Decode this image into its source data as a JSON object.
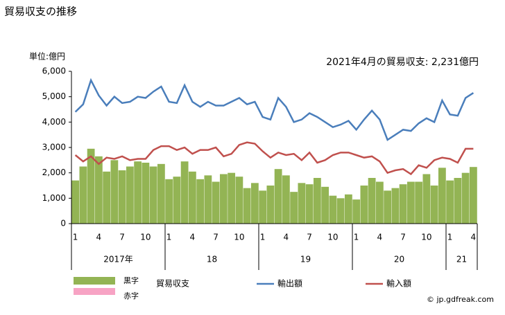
{
  "chart_data": {
    "type": "bar-line",
    "title": "貿易収支の推移",
    "unit_label": "単位:億円",
    "annotation": "2021年4月の貿易収支: 2,231億円",
    "credit": "© jp.gdfreak.com",
    "categories": [
      "1",
      null,
      null,
      "4",
      null,
      null,
      "7",
      null,
      null,
      "10",
      null,
      null,
      "1",
      null,
      null,
      "4",
      null,
      null,
      "7",
      null,
      null,
      "10",
      null,
      null,
      "1",
      null,
      null,
      "4",
      null,
      null,
      "7",
      null,
      null,
      "10",
      null,
      null,
      "1",
      null,
      null,
      "4",
      null,
      null,
      "7",
      null,
      null,
      "10",
      null,
      null,
      "1",
      null,
      null,
      "4"
    ],
    "years": [
      "2017年",
      "18",
      "19",
      "20",
      "21"
    ],
    "balance_legend": {
      "positive": "黒字",
      "negative": "赤字",
      "positive_color": "#93b454",
      "negative_color": "#f7a3c4"
    },
    "series": [
      {
        "name": "貿易収支",
        "type": "bar",
        "color": "#93b454",
        "values": [
          1700,
          2250,
          2950,
          2650,
          2050,
          2500,
          2100,
          2250,
          2450,
          2400,
          2250,
          2350,
          1750,
          1850,
          2450,
          2050,
          1750,
          1900,
          1650,
          1950,
          2000,
          1850,
          1400,
          1600,
          1300,
          1500,
          2150,
          1900,
          1250,
          1600,
          1550,
          1800,
          1450,
          1100,
          1000,
          1150,
          950,
          1500,
          1800,
          1650,
          1300,
          1400,
          1550,
          1650,
          1650,
          1950,
          1500,
          2200,
          1700,
          1800,
          2000,
          2231
        ]
      },
      {
        "name": "輸出額",
        "type": "line",
        "color": "#4a7ebb",
        "values": [
          4400,
          4700,
          5650,
          5050,
          4650,
          5000,
          4750,
          4800,
          5000,
          4950,
          5200,
          5400,
          4800,
          4750,
          5450,
          4800,
          4600,
          4800,
          4650,
          4650,
          4800,
          4950,
          4700,
          4800,
          4200,
          4100,
          4950,
          4600,
          4000,
          4100,
          4350,
          4200,
          4000,
          3800,
          3900,
          4050,
          3700,
          4100,
          4450,
          4100,
          3300,
          3500,
          3700,
          3650,
          3950,
          4150,
          4000,
          4850,
          4300,
          4250,
          4950,
          5150
        ]
      },
      {
        "name": "輸入額",
        "type": "line",
        "color": "#c0504d",
        "values": [
          2700,
          2450,
          2650,
          2350,
          2600,
          2550,
          2650,
          2500,
          2550,
          2550,
          2900,
          3050,
          3050,
          2900,
          3000,
          2750,
          2900,
          2900,
          3000,
          2650,
          2750,
          3100,
          3200,
          3150,
          2850,
          2600,
          2800,
          2700,
          2750,
          2500,
          2800,
          2400,
          2500,
          2700,
          2800,
          2800,
          2700,
          2600,
          2650,
          2450,
          2000,
          2100,
          2150,
          1950,
          2300,
          2200,
          2500,
          2600,
          2550,
          2400,
          2950,
          2950
        ]
      }
    ],
    "ylim": [
      0,
      6000
    ],
    "yticks": [
      0,
      {
        "value": 1000,
        "label": "1,000"
      },
      {
        "value": 2000,
        "label": "2,000"
      },
      {
        "value": 3000,
        "label": "3,000"
      },
      {
        "value": 4000,
        "label": "4,000"
      },
      {
        "value": 5000,
        "label": "5,000"
      },
      {
        "value": 6000,
        "label": "6,000"
      }
    ],
    "grid": false
  }
}
